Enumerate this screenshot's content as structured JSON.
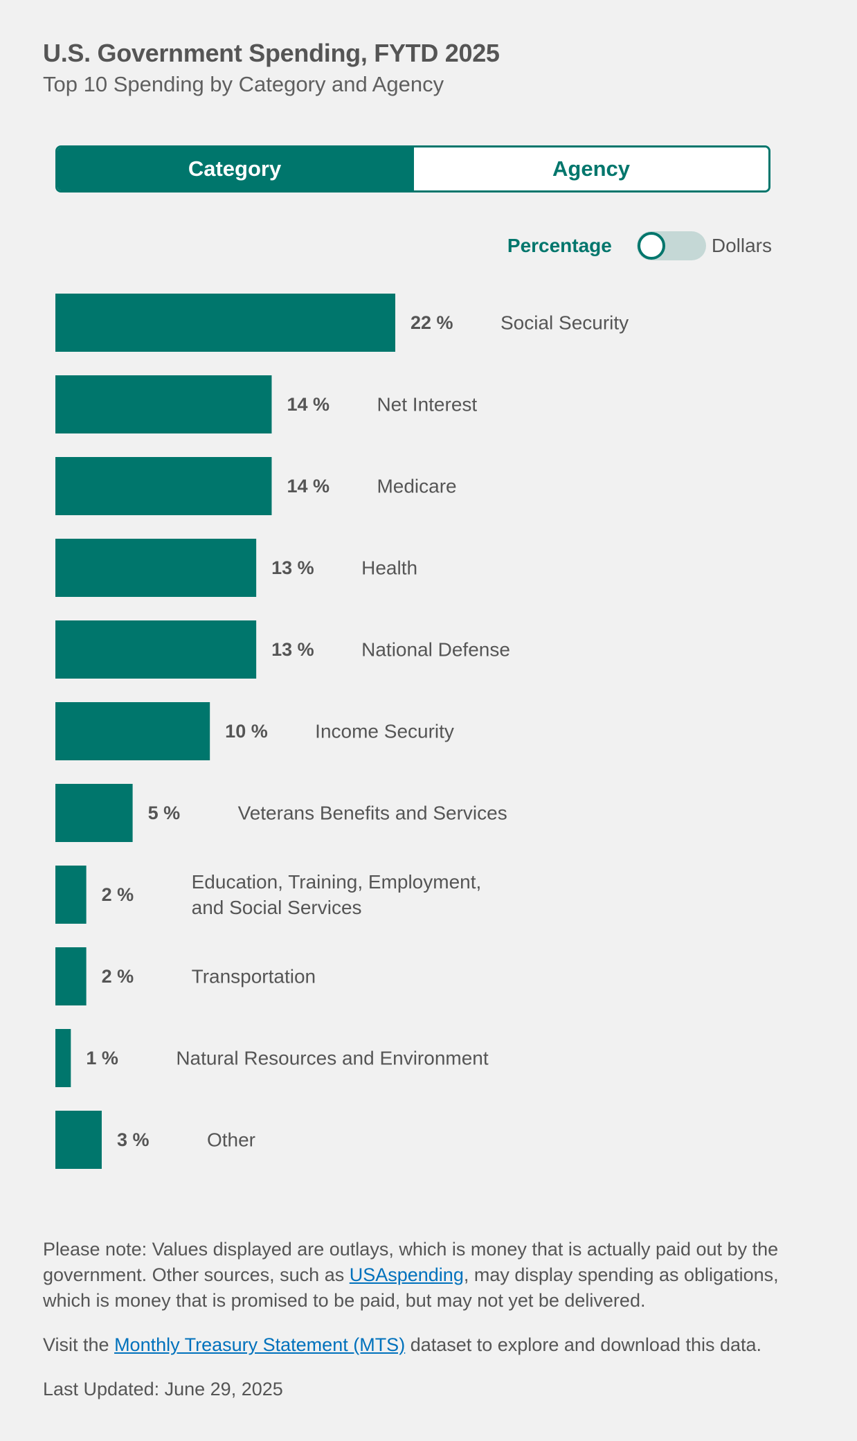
{
  "header": {
    "title": "U.S. Government Spending, FYTD 2025",
    "subtitle": "Top 10 Spending by Category and Agency"
  },
  "tabs": [
    {
      "label": "Category",
      "active": true
    },
    {
      "label": "Agency",
      "active": false
    }
  ],
  "toggle": {
    "left_label": "Percentage",
    "right_label": "Dollars",
    "state": "Percentage"
  },
  "colors": {
    "accent": "#00766c",
    "text": "#555555",
    "link": "#0071bc",
    "background": "#f1f1f1"
  },
  "chart_data": {
    "type": "bar",
    "orientation": "horizontal",
    "title": "",
    "xlabel": "",
    "ylabel": "",
    "value_suffix": " %",
    "categories": [
      "Social Security",
      "Net Interest",
      "Medicare",
      "Health",
      "National Defense",
      "Income Security",
      "Veterans Benefits and Services",
      "Education, Training, Employment, and Social Services",
      "Transportation",
      "Natural Resources and Environment",
      "Other"
    ],
    "values": [
      22,
      14,
      14,
      13,
      13,
      10,
      5,
      2,
      2,
      1,
      3
    ],
    "xlim": [
      0,
      22
    ],
    "grid": false,
    "legend": "none"
  },
  "notes": {
    "p1_before": "Please note: Values displayed are outlays, which is money that is actually paid out by the government. Other sources, such as ",
    "p1_link": "USAspending",
    "p1_after": ", may display spending as obligations, which is money that is promised to be paid, but may not yet be delivered.",
    "p2_before": "Visit the ",
    "p2_link": "Monthly Treasury Statement (MTS)",
    "p2_after": " dataset to explore and download this data.",
    "last_updated": "Last Updated: June 29, 2025"
  }
}
